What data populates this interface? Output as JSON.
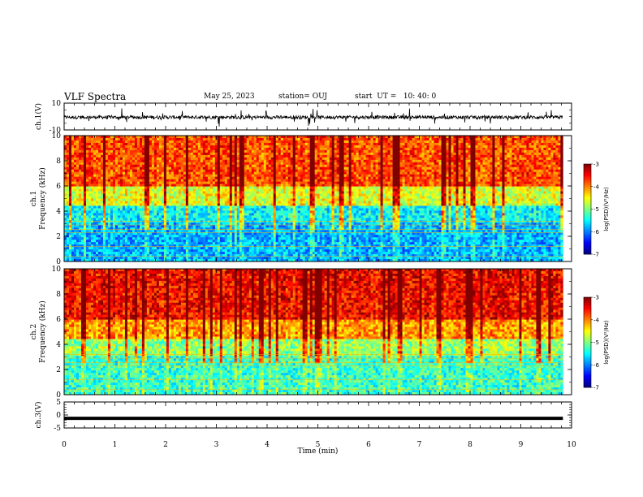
{
  "header": {
    "title": "VLF Spectra",
    "date": "May 25, 2023",
    "station": "station= OUJ",
    "start": "start  UT =   10: 40: 0"
  },
  "chart_data": [
    {
      "type": "line",
      "name": "ch1-waveform",
      "ylabel": "ch.1(V)",
      "ylim": [
        -10,
        10
      ],
      "yticks": [
        "10",
        "-10"
      ],
      "x_range_min": [
        0,
        9.83
      ],
      "description_values": {
        "baseline": -0.5,
        "noise_amplitude": 2.5
      }
    },
    {
      "type": "heatmap",
      "name": "ch1-spectrogram",
      "ylabel_line1": "ch.1",
      "ylabel_line2": "Frequency (kHz)",
      "ylim": [
        0,
        10
      ],
      "yticks": [
        "0",
        "2",
        "4",
        "6",
        "8",
        "10"
      ],
      "x_range_min": [
        0,
        9.83
      ],
      "colorbar": {
        "label": "log(PSD)(V²/Hz)",
        "range": [
          -7,
          -3
        ],
        "ticks": [
          "-3",
          "-4",
          "-5",
          "-6",
          "-7"
        ]
      },
      "level_by_band_kHz": [
        {
          "f_from": 0,
          "f_to": 3,
          "logPSD": -5.8
        },
        {
          "f_from": 3,
          "f_to": 4.5,
          "logPSD": -5.5
        },
        {
          "f_from": 4.5,
          "f_to": 6,
          "logPSD": -4.6
        },
        {
          "f_from": 6,
          "f_to": 10,
          "logPSD": -3.8
        }
      ]
    },
    {
      "type": "heatmap",
      "name": "ch2-spectrogram",
      "ylabel_line1": "ch.2",
      "ylabel_line2": "Frequency (kHz)",
      "ylim": [
        0,
        10
      ],
      "yticks": [
        "0",
        "2",
        "4",
        "6",
        "8",
        "10"
      ],
      "x_range_min": [
        0,
        9.83
      ],
      "colorbar": {
        "label": "log(PSD)(V²/Hz)",
        "range": [
          -7,
          -3
        ],
        "ticks": [
          "-3",
          "-4",
          "-5",
          "-6",
          "-7"
        ]
      },
      "level_by_band_kHz": [
        {
          "f_from": 0,
          "f_to": 3,
          "logPSD": -5.3
        },
        {
          "f_from": 3,
          "f_to": 4.5,
          "logPSD": -4.9
        },
        {
          "f_from": 4.5,
          "f_to": 6,
          "logPSD": -4.1
        },
        {
          "f_from": 6,
          "f_to": 10,
          "logPSD": -3.5
        }
      ]
    },
    {
      "type": "line",
      "name": "ch3-signal",
      "ylabel": "ch.3(V)",
      "ylim": [
        -5,
        5
      ],
      "yticks": [
        "5",
        "0",
        "-5"
      ],
      "x_range_min": [
        0,
        9.83
      ],
      "constant_value": -1.3,
      "xlabel": "Time (min)",
      "xlim": [
        0,
        10
      ],
      "xticks": [
        "0",
        "1",
        "2",
        "3",
        "4",
        "5",
        "6",
        "7",
        "8",
        "9",
        "10"
      ]
    }
  ]
}
